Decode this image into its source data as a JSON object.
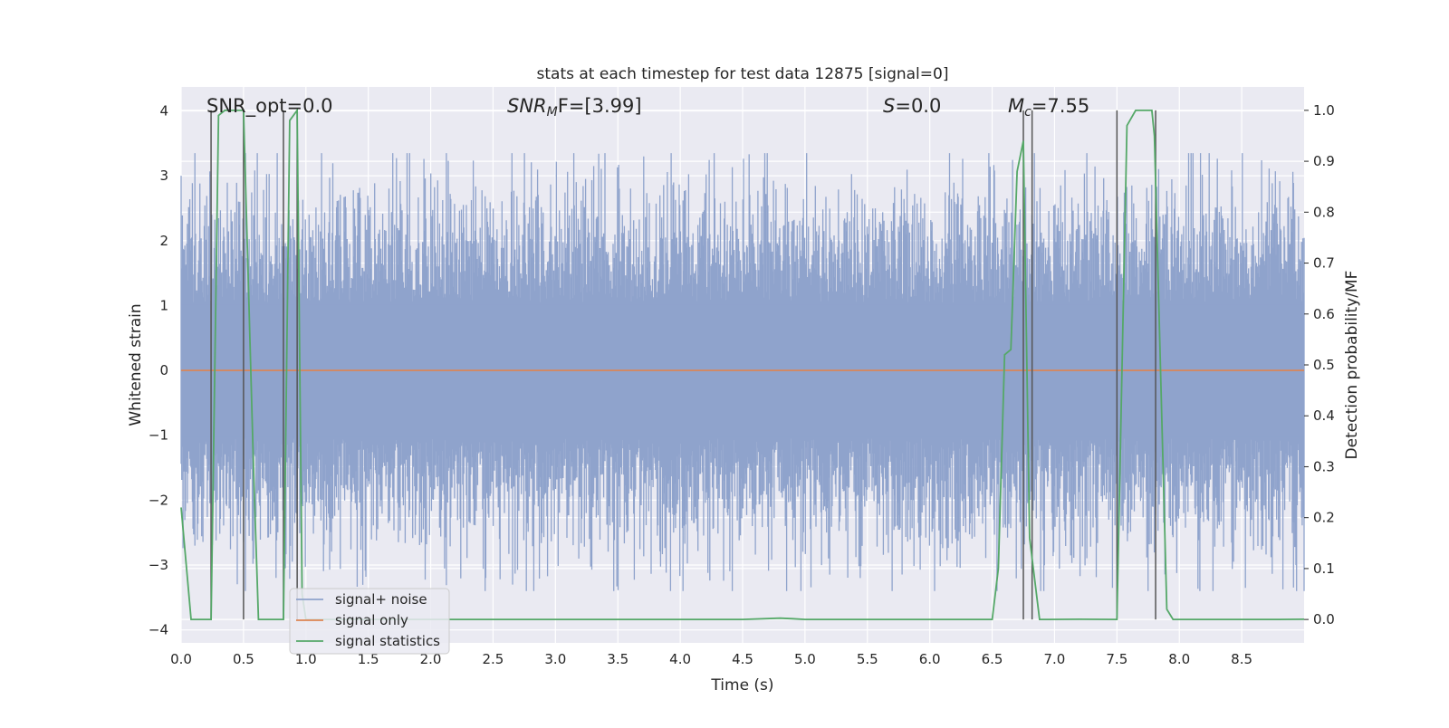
{
  "chart_data": {
    "type": "line",
    "title": "stats at each timestep for test data 12875 [signal=0]",
    "xlabel": "Time (s)",
    "ylabel_left": "Whitened strain",
    "ylabel_right": "Detection probability/MF",
    "xlim": [
      0.0,
      9.0
    ],
    "ylim_left": [
      -4.2,
      4.37
    ],
    "ylim_right": [
      -0.046,
      1.046
    ],
    "x_ticks": [
      "0.0",
      "0.5",
      "1.0",
      "1.5",
      "2.0",
      "2.5",
      "3.0",
      "3.5",
      "4.0",
      "4.5",
      "5.0",
      "5.5",
      "6.0",
      "6.5",
      "7.0",
      "7.5",
      "8.0",
      "8.5"
    ],
    "y_left_ticks": [
      "4",
      "3",
      "2",
      "1",
      "0",
      "−1",
      "−2",
      "−3",
      "−4"
    ],
    "y_right_ticks": [
      "1.0",
      "0.9",
      "0.8",
      "0.7",
      "0.6",
      "0.5",
      "0.4",
      "0.3",
      "0.2",
      "0.1",
      "0.0"
    ],
    "grid": true,
    "legend_position": "lower-left",
    "colors": {
      "noise": "#8fa3cc",
      "signal": "#dd8452",
      "stats": "#55a868",
      "vlines": "#555555",
      "background": "#eaeaf2"
    },
    "annotations": {
      "snr_opt": "SNR_opt=0.0",
      "snr_mf_name": "SNR",
      "snr_mf_sub": "M",
      "snr_mf_rest": "F=[3.99]",
      "s_name": "S",
      "s_rest": "=0.0",
      "mc_name": "M",
      "mc_sub": "c",
      "mc_rest": "=7.55"
    },
    "series": [
      {
        "name": "signal+ noise",
        "axis": "left",
        "description": "whitened strain time series, amplitude range about -3.4 to 3.35",
        "amplitude_range": [
          -3.4,
          3.35
        ]
      },
      {
        "name": "signal only",
        "axis": "left",
        "x": [
          0.0,
          9.0
        ],
        "y": [
          0.0,
          0.0
        ]
      },
      {
        "name": "signal statistics",
        "axis": "right",
        "x": [
          0.0,
          0.08,
          0.15,
          0.24,
          0.3,
          0.35,
          0.45,
          0.5,
          0.58,
          0.62,
          0.78,
          0.82,
          0.87,
          0.93,
          0.97,
          1.0,
          1.05,
          1.5,
          2.5,
          3.5,
          4.5,
          4.8,
          4.9,
          5.0,
          6.0,
          6.5,
          6.55,
          6.6,
          6.65,
          6.7,
          6.75,
          6.8,
          6.88,
          6.95,
          7.2,
          7.5,
          7.58,
          7.65,
          7.78,
          7.8,
          7.9,
          7.95,
          8.0,
          8.5,
          8.8,
          9.0
        ],
        "y": [
          0.22,
          0.0,
          0.0,
          0.0,
          0.99,
          1.0,
          1.0,
          1.0,
          0.3,
          0.0,
          0.0,
          0.0,
          0.98,
          1.0,
          0.05,
          0.0,
          0.0,
          0.0,
          0.0,
          0.0,
          0.0,
          0.0025,
          0.0015,
          0.0,
          0.0,
          0.0,
          0.1,
          0.52,
          0.53,
          0.88,
          0.94,
          0.16,
          0.0,
          0.0,
          0.0005,
          0.0,
          0.97,
          1.0,
          1.0,
          0.95,
          0.02,
          0.0,
          0.0,
          0.0,
          0.0,
          0.0005
        ]
      }
    ],
    "vertical_lines_x": [
      0.24,
      0.5,
      0.82,
      0.93,
      6.75,
      6.82,
      7.5,
      7.81
    ]
  }
}
